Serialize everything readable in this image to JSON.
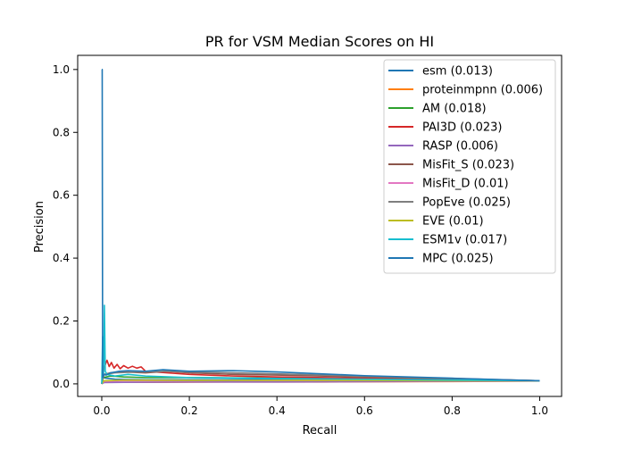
{
  "chart_data": {
    "type": "line",
    "title": "PR for VSM Median Scores on HI",
    "xlabel": "Recall",
    "ylabel": "Precision",
    "xlim": [
      -0.055,
      1.05
    ],
    "ylim": [
      -0.04,
      1.045
    ],
    "x_ticks": [
      "0.0",
      "0.2",
      "0.4",
      "0.6",
      "0.8",
      "1.0"
    ],
    "y_ticks": [
      "0.0",
      "0.2",
      "0.4",
      "0.6",
      "0.8",
      "1.0"
    ],
    "grid": false,
    "legend_position": "upper-right",
    "series": [
      {
        "name": "esm (0.013)",
        "color": "#1f77b4",
        "points": [
          [
            0,
            0
          ],
          [
            0.002,
            0.02
          ],
          [
            0.01,
            0.018
          ],
          [
            0.03,
            0.015
          ],
          [
            0.06,
            0.014
          ],
          [
            0.1,
            0.013
          ],
          [
            0.2,
            0.013
          ],
          [
            0.4,
            0.013
          ],
          [
            0.6,
            0.012
          ],
          [
            0.8,
            0.011
          ],
          [
            1.0,
            0.01
          ]
        ]
      },
      {
        "name": "proteinmpnn (0.006)",
        "color": "#ff7f0e",
        "points": [
          [
            0,
            0
          ],
          [
            0.005,
            0.006
          ],
          [
            0.02,
            0.005
          ],
          [
            0.1,
            0.005
          ],
          [
            0.3,
            0.006
          ],
          [
            0.5,
            0.006
          ],
          [
            0.7,
            0.007
          ],
          [
            0.9,
            0.008
          ],
          [
            1.0,
            0.009
          ]
        ]
      },
      {
        "name": "AM (0.018)",
        "color": "#2ca02c",
        "points": [
          [
            0,
            0
          ],
          [
            0.003,
            0.02
          ],
          [
            0.02,
            0.025
          ],
          [
            0.05,
            0.022
          ],
          [
            0.1,
            0.02
          ],
          [
            0.2,
            0.02
          ],
          [
            0.4,
            0.018
          ],
          [
            0.6,
            0.015
          ],
          [
            0.8,
            0.013
          ],
          [
            1.0,
            0.01
          ]
        ]
      },
      {
        "name": "PAI3D (0.023)",
        "color": "#d62728",
        "points": [
          [
            0,
            0
          ],
          [
            0.005,
            0.05
          ],
          [
            0.012,
            0.075
          ],
          [
            0.017,
            0.055
          ],
          [
            0.022,
            0.068
          ],
          [
            0.028,
            0.05
          ],
          [
            0.035,
            0.062
          ],
          [
            0.042,
            0.048
          ],
          [
            0.05,
            0.058
          ],
          [
            0.06,
            0.05
          ],
          [
            0.07,
            0.056
          ],
          [
            0.08,
            0.05
          ],
          [
            0.09,
            0.054
          ],
          [
            0.1,
            0.04
          ],
          [
            0.2,
            0.03
          ],
          [
            0.3,
            0.025
          ],
          [
            0.4,
            0.022
          ],
          [
            0.6,
            0.018
          ],
          [
            0.8,
            0.014
          ],
          [
            1.0,
            0.01
          ]
        ]
      },
      {
        "name": "RASP (0.006)",
        "color": "#9467bd",
        "points": [
          [
            0,
            0
          ],
          [
            0.005,
            0.004
          ],
          [
            0.05,
            0.005
          ],
          [
            0.2,
            0.006
          ],
          [
            0.4,
            0.006
          ],
          [
            0.6,
            0.007
          ],
          [
            0.8,
            0.008
          ],
          [
            1.0,
            0.009
          ]
        ]
      },
      {
        "name": "MisFit_S (0.023)",
        "color": "#8c564b",
        "points": [
          [
            0,
            0
          ],
          [
            0.005,
            0.03
          ],
          [
            0.02,
            0.035
          ],
          [
            0.05,
            0.038
          ],
          [
            0.1,
            0.035
          ],
          [
            0.15,
            0.04
          ],
          [
            0.2,
            0.035
          ],
          [
            0.3,
            0.03
          ],
          [
            0.4,
            0.028
          ],
          [
            0.6,
            0.022
          ],
          [
            0.8,
            0.016
          ],
          [
            1.0,
            0.01
          ]
        ]
      },
      {
        "name": "MisFit_D (0.01)",
        "color": "#e377c2",
        "points": [
          [
            0,
            0
          ],
          [
            0.005,
            0.008
          ],
          [
            0.05,
            0.01
          ],
          [
            0.2,
            0.01
          ],
          [
            0.4,
            0.011
          ],
          [
            0.6,
            0.011
          ],
          [
            0.8,
            0.01
          ],
          [
            1.0,
            0.01
          ]
        ]
      },
      {
        "name": "PopEve (0.025)",
        "color": "#7f7f7f",
        "points": [
          [
            0,
            0
          ],
          [
            0.005,
            0.03
          ],
          [
            0.03,
            0.035
          ],
          [
            0.08,
            0.038
          ],
          [
            0.15,
            0.04
          ],
          [
            0.2,
            0.038
          ],
          [
            0.3,
            0.035
          ],
          [
            0.4,
            0.032
          ],
          [
            0.5,
            0.028
          ],
          [
            0.6,
            0.024
          ],
          [
            0.8,
            0.017
          ],
          [
            1.0,
            0.01
          ]
        ]
      },
      {
        "name": "EVE (0.01)",
        "color": "#bcbd22",
        "points": [
          [
            0,
            0
          ],
          [
            0.005,
            0.01
          ],
          [
            0.05,
            0.012
          ],
          [
            0.2,
            0.011
          ],
          [
            0.4,
            0.011
          ],
          [
            0.6,
            0.011
          ],
          [
            0.8,
            0.01
          ],
          [
            1.0,
            0.01
          ]
        ]
      },
      {
        "name": "ESM1v (0.017)",
        "color": "#17becf",
        "points": [
          [
            0,
            0
          ],
          [
            0.002,
            0.15
          ],
          [
            0.004,
            0.03
          ],
          [
            0.006,
            0.25
          ],
          [
            0.008,
            0.04
          ],
          [
            0.012,
            0.03
          ],
          [
            0.03,
            0.025
          ],
          [
            0.06,
            0.03
          ],
          [
            0.1,
            0.025
          ],
          [
            0.2,
            0.02
          ],
          [
            0.4,
            0.017
          ],
          [
            0.6,
            0.015
          ],
          [
            0.8,
            0.012
          ],
          [
            1.0,
            0.01
          ]
        ]
      },
      {
        "name": "MPC (0.025)",
        "color": "#1f77b4",
        "points": [
          [
            0,
            1.0
          ],
          [
            0.001,
            1.0
          ],
          [
            0.002,
            0.02
          ],
          [
            0.005,
            0.03
          ],
          [
            0.01,
            0.028
          ],
          [
            0.02,
            0.035
          ],
          [
            0.04,
            0.04
          ],
          [
            0.06,
            0.042
          ],
          [
            0.1,
            0.04
          ],
          [
            0.14,
            0.045
          ],
          [
            0.2,
            0.04
          ],
          [
            0.3,
            0.042
          ],
          [
            0.35,
            0.04
          ],
          [
            0.4,
            0.038
          ],
          [
            0.5,
            0.032
          ],
          [
            0.6,
            0.026
          ],
          [
            0.7,
            0.022
          ],
          [
            0.8,
            0.018
          ],
          [
            0.9,
            0.014
          ],
          [
            1.0,
            0.01
          ]
        ]
      }
    ]
  }
}
